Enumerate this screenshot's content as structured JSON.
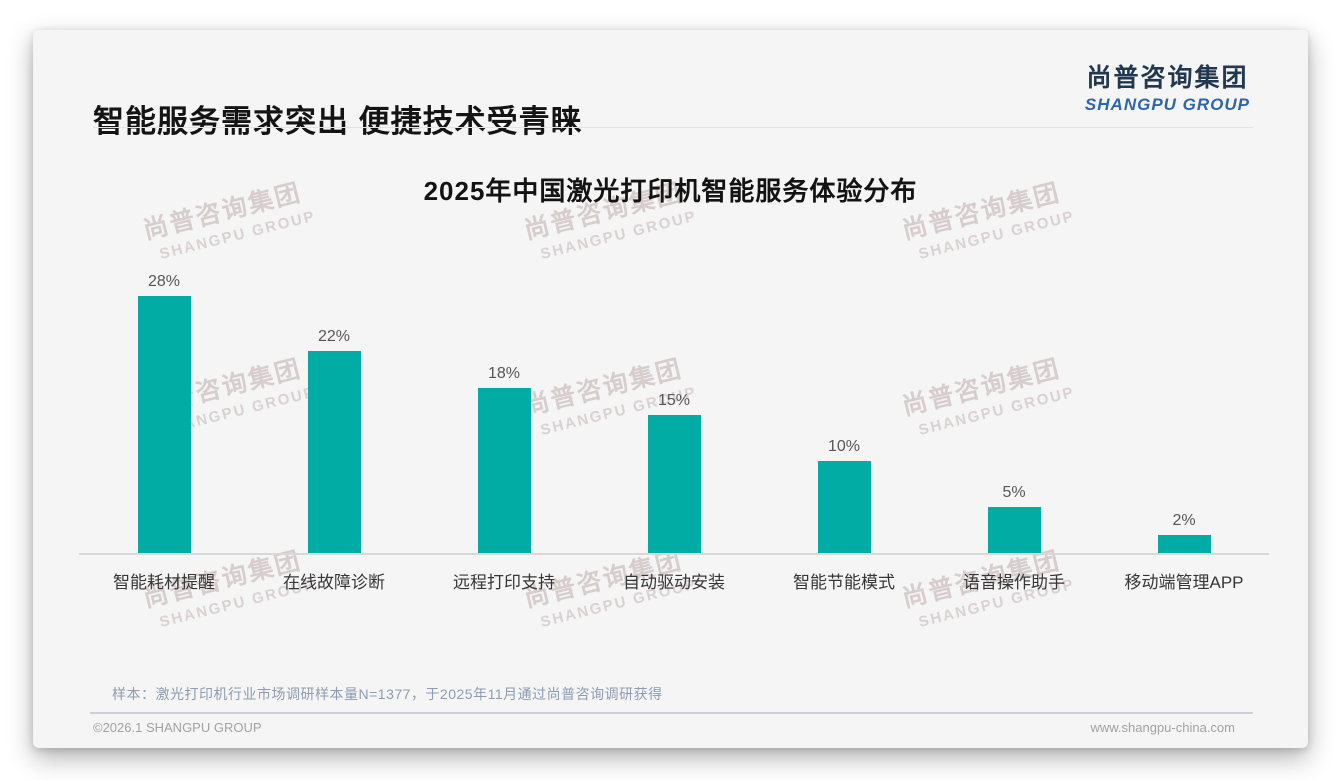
{
  "page": {
    "header": {
      "title": "智能服务需求突出 便捷技术受青睐"
    },
    "logo": {
      "cn": "尚普咨询集团",
      "en": "SHANGPU GROUP",
      "cn_color": "#22384f",
      "en_color": "#2e66a8"
    },
    "watermark": {
      "line1": "尚普咨询集团",
      "line2": "SHANGPU GROUP"
    },
    "footnote": "样本：激光打印机行业市场调研样本量N=1377，于2025年11月通过尚普咨询调研获得",
    "footer": {
      "left": "©2026.1 SHANGPU GROUP",
      "right": "www.shangpu-china.com"
    }
  },
  "chart_data": {
    "type": "bar",
    "title": "2025年中国激光打印机智能服务体验分布",
    "categories": [
      "智能耗材提醒",
      "在线故障诊断",
      "远程打印支持",
      "自动驱动安装",
      "智能节能模式",
      "语音操作助手",
      "移动端管理APP"
    ],
    "values": [
      28,
      22,
      18,
      15,
      10,
      5,
      2
    ],
    "value_labels": [
      "28%",
      "22%",
      "18%",
      "15%",
      "10%",
      "5%",
      "2%"
    ],
    "unit": "%",
    "bar_color": "#00ACA3",
    "ylim": [
      0,
      30
    ],
    "grid": false,
    "legend": null,
    "xlabel": "",
    "ylabel": ""
  }
}
